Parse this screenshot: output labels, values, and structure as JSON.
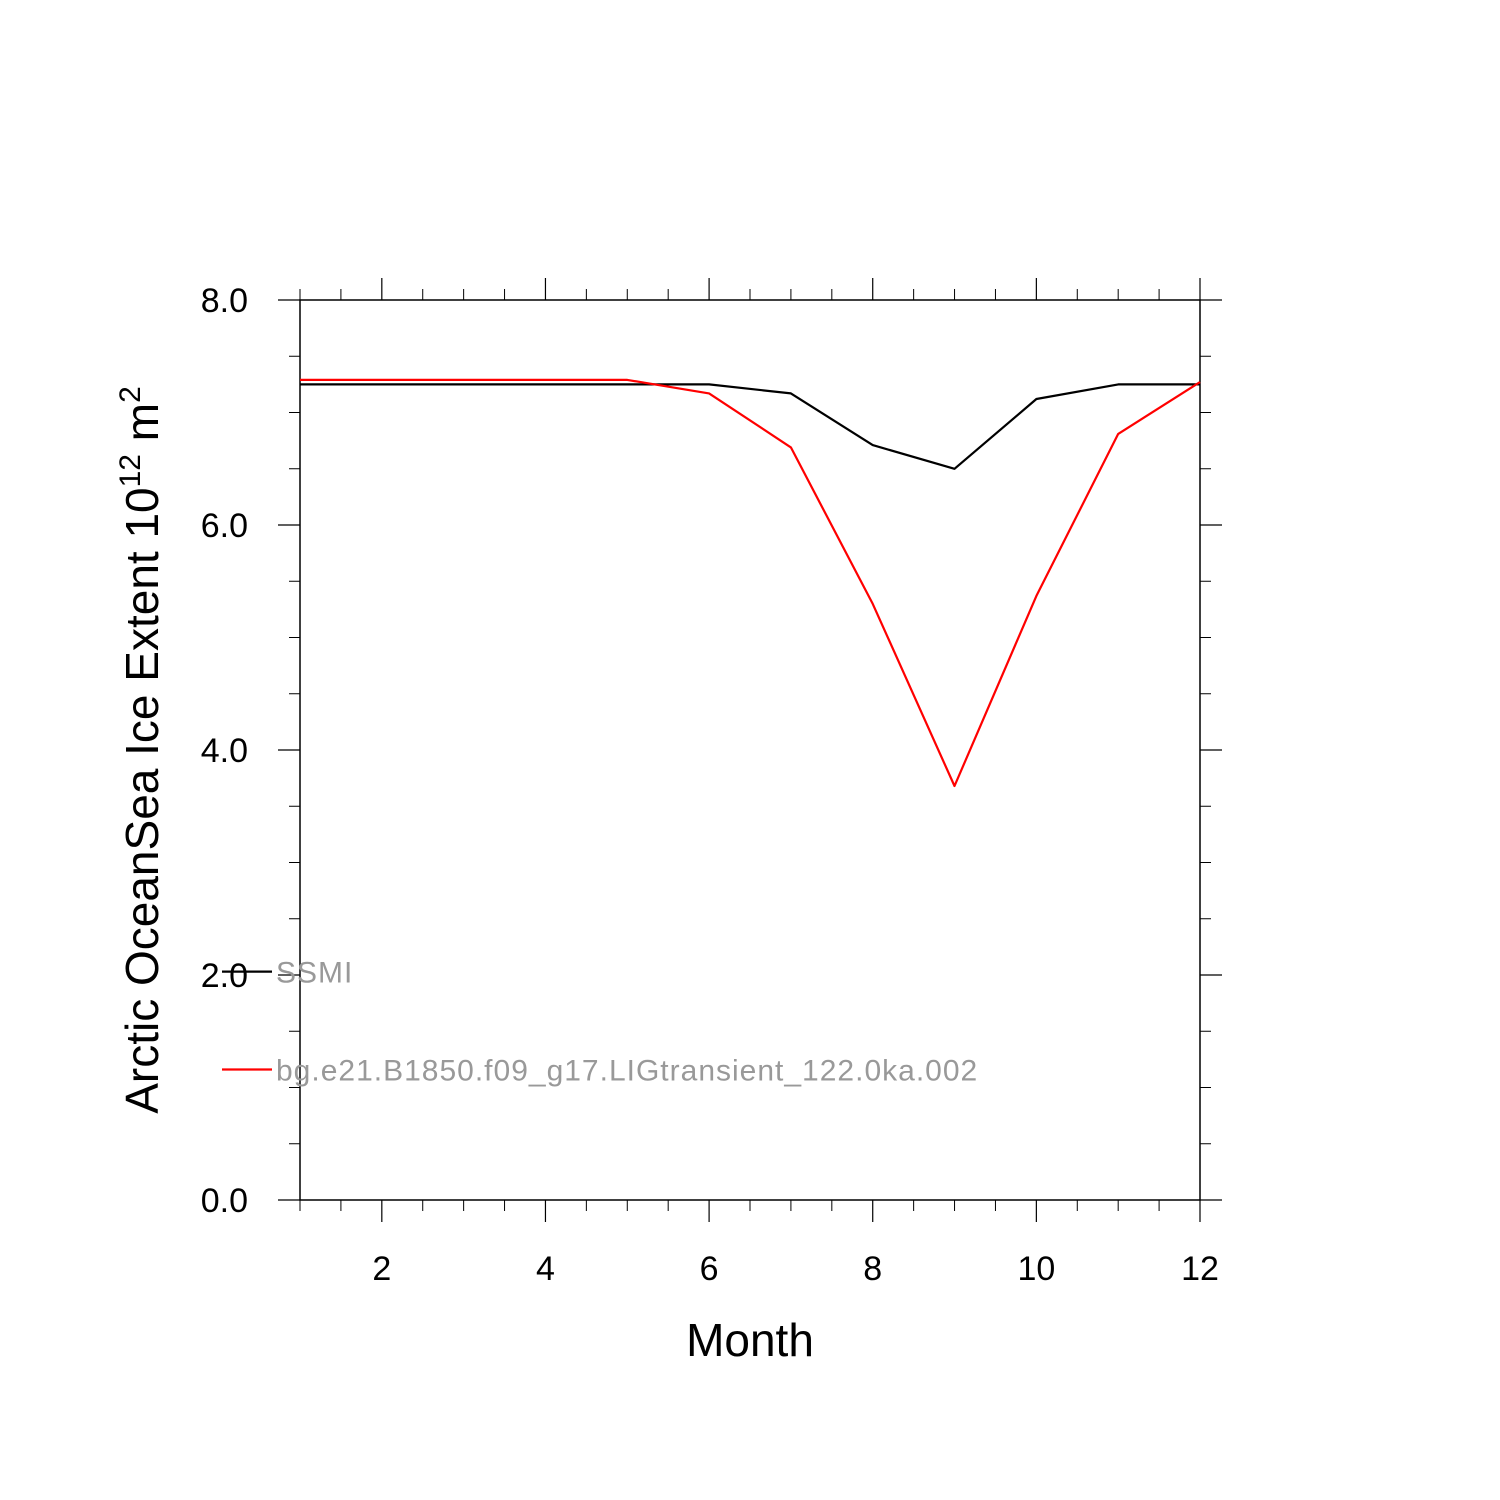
{
  "chart_data": {
    "type": "line",
    "xlabel": "Month",
    "ylabel_main": "Arctic OceanSea Ice Extent 10",
    "ylabel_sup1": "12",
    "ylabel_unit": " m",
    "ylabel_sup2": "2",
    "xlim": [
      1,
      12
    ],
    "ylim": [
      0,
      8
    ],
    "x_ticks": [
      2,
      4,
      6,
      8,
      10,
      12
    ],
    "x_tick_labels": [
      "2",
      "4",
      "6",
      "8",
      "10",
      "12"
    ],
    "y_ticks": [
      0,
      2,
      4,
      6,
      8
    ],
    "y_tick_labels": [
      "0.0",
      "2.0",
      "4.0",
      "6.0",
      "8.0"
    ],
    "x_minor_step": 0.5,
    "y_minor_step": 0.5,
    "grid": false,
    "legend_position": "lower-left",
    "x": [
      1,
      2,
      3,
      4,
      5,
      6,
      7,
      8,
      9,
      10,
      11,
      12
    ],
    "series": [
      {
        "name": "SSMI",
        "color": "#000000",
        "values": [
          7.25,
          7.25,
          7.25,
          7.25,
          7.25,
          7.25,
          7.17,
          6.71,
          6.5,
          7.12,
          7.25,
          7.25
        ]
      },
      {
        "name": "bg.e21.B1850.f09_g17.LIGtransient_122.0ka.002",
        "color": "#ff0000",
        "values": [
          7.29,
          7.29,
          7.29,
          7.29,
          7.29,
          7.17,
          6.69,
          5.3,
          3.68,
          5.37,
          6.81,
          7.27
        ]
      }
    ]
  }
}
